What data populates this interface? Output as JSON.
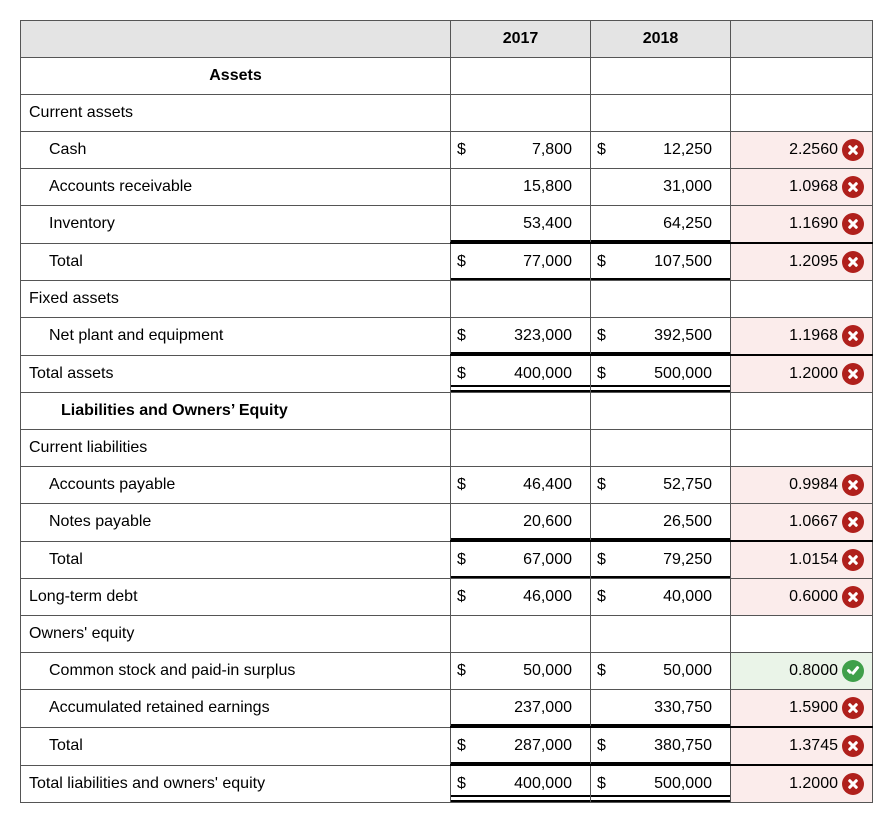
{
  "table": {
    "columns": {
      "year1": "2017",
      "year2": "2018"
    },
    "section_assets": "Assets",
    "section_liab": "Liabilities and Owners’ Equity",
    "colors": {
      "wrong_bg": "#fbeceb",
      "wrong_icon": "#b0201c",
      "correct_bg": "#eaf4e8",
      "correct_icon": "#3fa04a",
      "header_bg": "#e4e4e4",
      "border": "#555555"
    },
    "rows": [
      {
        "id": "current-assets-header",
        "label": "Current assets",
        "indent": 0,
        "type": "group"
      },
      {
        "id": "cash",
        "label": "Cash",
        "indent": 1,
        "y2017": "7,800",
        "d2017": true,
        "y2018": "12,250",
        "d2018": true,
        "calc": "2.2560",
        "status": "wrong"
      },
      {
        "id": "ar",
        "label": "Accounts receivable",
        "indent": 1,
        "y2017": "15,800",
        "y2018": "31,000",
        "calc": "1.0968",
        "status": "wrong"
      },
      {
        "id": "inventory",
        "label": "Inventory",
        "indent": 1,
        "y2017": "53,400",
        "y2018": "64,250",
        "calc": "1.1690",
        "status": "wrong",
        "underline": "single"
      },
      {
        "id": "ca-total",
        "label": "Total",
        "indent": 1,
        "y2017": "77,000",
        "d2017": true,
        "y2018": "107,500",
        "d2018": true,
        "calc": "1.2095",
        "status": "wrong",
        "topline": true,
        "underline": "single"
      },
      {
        "id": "fixed-assets-header",
        "label": "Fixed assets",
        "indent": 0,
        "type": "group"
      },
      {
        "id": "npe",
        "label": "Net plant and equipment",
        "indent": 1,
        "y2017": "323,000",
        "d2017": true,
        "y2018": "392,500",
        "d2018": true,
        "calc": "1.1968",
        "status": "wrong",
        "underline": "single"
      },
      {
        "id": "total-assets",
        "label": "Total assets",
        "indent": 0,
        "y2017": "400,000",
        "d2017": true,
        "y2018": "500,000",
        "d2018": true,
        "calc": "1.2000",
        "status": "wrong",
        "topline": true,
        "underline": "double"
      },
      {
        "id": "liab-section",
        "type": "section",
        "label_key": "section_liab"
      },
      {
        "id": "cl-header",
        "label": "Current liabilities",
        "indent": 0,
        "type": "group"
      },
      {
        "id": "ap",
        "label": "Accounts payable",
        "indent": 1,
        "y2017": "46,400",
        "d2017": true,
        "y2018": "52,750",
        "d2018": true,
        "calc": "0.9984",
        "status": "wrong"
      },
      {
        "id": "np",
        "label": "Notes payable",
        "indent": 1,
        "y2017": "20,600",
        "y2018": "26,500",
        "calc": "1.0667",
        "status": "wrong",
        "underline": "single"
      },
      {
        "id": "cl-total",
        "label": "Total",
        "indent": 1,
        "y2017": "67,000",
        "d2017": true,
        "y2018": "79,250",
        "d2018": true,
        "calc": "1.0154",
        "status": "wrong",
        "topline": true,
        "underline": "single"
      },
      {
        "id": "ltd",
        "label": "Long-term debt",
        "indent": 0,
        "y2017": "46,000",
        "d2017": true,
        "y2018": "40,000",
        "d2018": true,
        "calc": "0.6000",
        "status": "wrong"
      },
      {
        "id": "oe-header",
        "label": "Owners' equity",
        "indent": 0,
        "type": "group"
      },
      {
        "id": "cs",
        "label": "Common stock and paid-in surplus",
        "indent": 1,
        "y2017": "50,000",
        "d2017": true,
        "y2018": "50,000",
        "d2018": true,
        "calc": "0.8000",
        "status": "correct"
      },
      {
        "id": "re",
        "label": "Accumulated retained earnings",
        "indent": 1,
        "y2017": "237,000",
        "y2018": "330,750",
        "calc": "1.5900",
        "status": "wrong",
        "underline": "single"
      },
      {
        "id": "oe-total",
        "label": "Total",
        "indent": 1,
        "y2017": "287,000",
        "d2017": true,
        "y2018": "380,750",
        "d2018": true,
        "calc": "1.3745",
        "status": "wrong",
        "topline": true,
        "underline": "single"
      },
      {
        "id": "tloe",
        "label": "Total liabilities and owners' equity",
        "indent": 0,
        "y2017": "400,000",
        "d2017": true,
        "y2018": "500,000",
        "d2018": true,
        "calc": "1.2000",
        "status": "wrong",
        "topline": true,
        "underline": "double"
      }
    ]
  }
}
